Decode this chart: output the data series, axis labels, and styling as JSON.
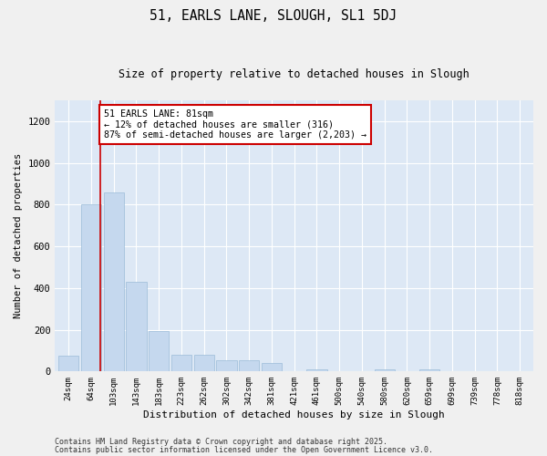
{
  "title1": "51, EARLS LANE, SLOUGH, SL1 5DJ",
  "title2": "Size of property relative to detached houses in Slough",
  "xlabel": "Distribution of detached houses by size in Slough",
  "ylabel": "Number of detached properties",
  "bar_color": "#c5d8ee",
  "bar_edge_color": "#9bbcd8",
  "background_color": "#dde8f5",
  "grid_color": "#ffffff",
  "categories": [
    "24sqm",
    "64sqm",
    "103sqm",
    "143sqm",
    "183sqm",
    "223sqm",
    "262sqm",
    "302sqm",
    "342sqm",
    "381sqm",
    "421sqm",
    "461sqm",
    "500sqm",
    "540sqm",
    "580sqm",
    "620sqm",
    "659sqm",
    "699sqm",
    "739sqm",
    "778sqm",
    "818sqm"
  ],
  "values": [
    75,
    800,
    860,
    430,
    195,
    80,
    80,
    55,
    55,
    40,
    0,
    10,
    0,
    0,
    10,
    0,
    10,
    0,
    0,
    0,
    0
  ],
  "red_line_x": 1.42,
  "annotation_text": "51 EARLS LANE: 81sqm\n← 12% of detached houses are smaller (316)\n87% of semi-detached houses are larger (2,203) →",
  "annotation_box_color": "#ffffff",
  "annotation_box_edge": "#cc0000",
  "red_line_color": "#cc0000",
  "ylim": [
    0,
    1300
  ],
  "yticks": [
    0,
    200,
    400,
    600,
    800,
    1000,
    1200
  ],
  "footnote1": "Contains HM Land Registry data © Crown copyright and database right 2025.",
  "footnote2": "Contains public sector information licensed under the Open Government Licence v3.0.",
  "fig_width": 6.0,
  "fig_height": 5.0,
  "fig_bg": "#f0f0f0"
}
